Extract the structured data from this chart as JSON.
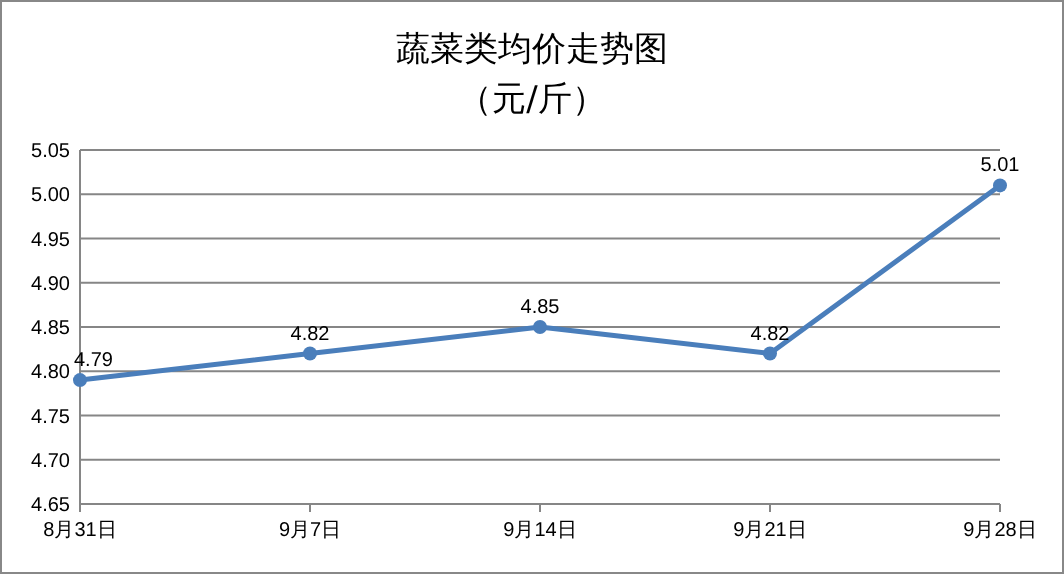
{
  "chart_data": {
    "type": "line",
    "title": "蔬菜类均价走势图",
    "subtitle": "（元/斤）",
    "categories": [
      "8月31日",
      "9月7日",
      "9月14日",
      "9月21日",
      "9月28日"
    ],
    "series": [
      {
        "color": "#4a7ebb",
        "values": [
          4.79,
          4.82,
          4.85,
          4.82,
          5.01
        ]
      }
    ],
    "ylim": [
      4.65,
      5.05
    ],
    "yticks": [
      4.65,
      {
        "value": 4.7,
        "label": "4.70"
      },
      4.75,
      {
        "value": 4.8,
        "label": "4.80"
      },
      4.85,
      {
        "value": 4.9,
        "label": "4.90"
      },
      4.95,
      {
        "value": 5.0,
        "label": "5.00"
      },
      5.05
    ],
    "grid": "y",
    "marker": "circle",
    "line_style": "solid",
    "data_labels": true
  }
}
